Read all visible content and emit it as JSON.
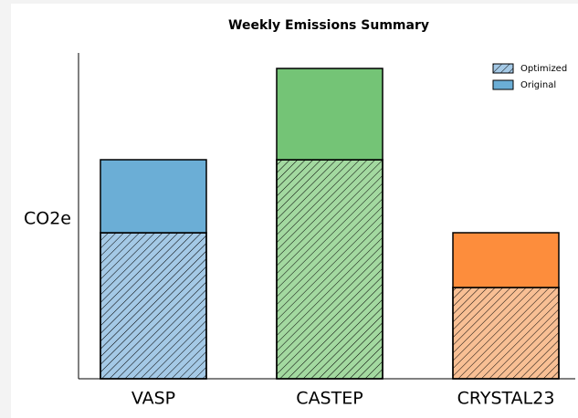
{
  "chart_data": {
    "type": "stacked_bar",
    "title": "Weekly Emissions Summary",
    "y_label": "CO2e",
    "categories": [
      "VASP",
      "CASTEP",
      "CRYSTAL23"
    ],
    "series": [
      {
        "name": "Optimized",
        "hatch": true,
        "colors": [
          "#a4c9e6",
          "#a3d9a0",
          "#f8bf94"
        ],
        "values": [
          8,
          12,
          5
        ]
      },
      {
        "name": "Original",
        "hatch": false,
        "colors": [
          "#6baed6",
          "#74c476",
          "#fd8d3c"
        ],
        "values": [
          4,
          5,
          3
        ]
      }
    ],
    "ylim": [
      0,
      18
    ],
    "legend": "upper right"
  }
}
